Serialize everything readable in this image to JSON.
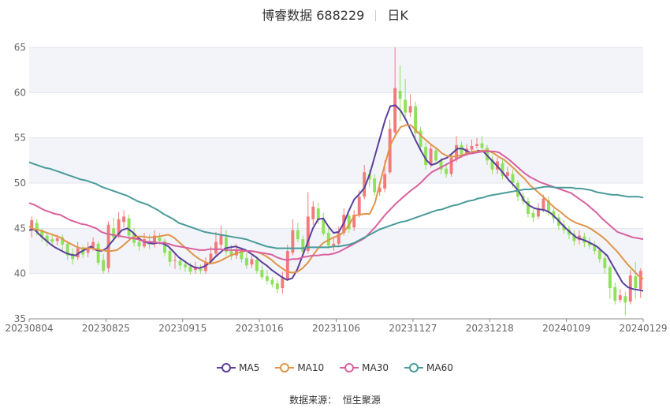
{
  "header": {
    "title": "博睿数据 688229",
    "period": "日K"
  },
  "legend": [
    {
      "label": "MA5",
      "color": "#5b3f9a"
    },
    {
      "label": "MA10",
      "color": "#e0954a"
    },
    {
      "label": "MA30",
      "color": "#d9619f"
    },
    {
      "label": "MA60",
      "color": "#4a9b9b"
    }
  ],
  "source": "数据来源：  恒生聚源",
  "colors": {
    "up": "#f37a7a",
    "down": "#8ee15a"
  },
  "chart_data": {
    "type": "candlestick",
    "ylim": [
      35,
      65
    ],
    "yticks": [
      35,
      40,
      45,
      50,
      55,
      60,
      65
    ],
    "xticks": [
      "20230804",
      "20230825",
      "20230915",
      "20231016",
      "20231106",
      "20231127",
      "20231218",
      "20240109",
      "20240129"
    ],
    "legend_position": "bottom",
    "grid": true,
    "series": [
      {
        "name": "MA5",
        "values": [
          44.8,
          44.9,
          44.3,
          43.8,
          43.3,
          42.9,
          42.6,
          42.3,
          42.1,
          42.0,
          42.4,
          42.7,
          43.0,
          42.6,
          42.5,
          42.8,
          43.5,
          44.2,
          44.8,
          45.0,
          44.6,
          44.0,
          43.6,
          43.4,
          43.3,
          43.4,
          43.3,
          43.0,
          42.4,
          41.8,
          41.4,
          41.0,
          40.7,
          40.6,
          40.8,
          41.2,
          41.8,
          42.3,
          42.8,
          42.9,
          43.0,
          42.8,
          42.6,
          42.2,
          41.8,
          41.3,
          40.9,
          40.4,
          40.0,
          39.6,
          39.3,
          39.5,
          40.5,
          42.0,
          43.5,
          45.0,
          46.0,
          46.1,
          45.2,
          44.5,
          44.6,
          45.6,
          47.0,
          48.2,
          48.8,
          49.5,
          51.0,
          53.0,
          55.0,
          57.0,
          58.5,
          58.6,
          58.0,
          57.0,
          55.8,
          54.6,
          53.5,
          52.5,
          52.0,
          52.2,
          52.6,
          52.8,
          53.3,
          53.8,
          53.8,
          53.5,
          53.3,
          53.6,
          53.5,
          52.9,
          52.3,
          51.7,
          51.0,
          50.3,
          49.7,
          49.0,
          48.0,
          47.5,
          47.2,
          47.1,
          47.0,
          46.7,
          46.2,
          45.6,
          45.0,
          44.5,
          44.0,
          43.8,
          43.6,
          43.3,
          43.0,
          42.5,
          42.0,
          41.0,
          40.0,
          39.0,
          38.5,
          38.3,
          38.2,
          38.1
        ]
      },
      {
        "name": "MA10",
        "values": [
          45.2,
          44.9,
          44.8,
          44.6,
          44.4,
          44.2,
          44.0,
          43.6,
          43.3,
          43.0,
          42.8,
          42.8,
          42.8,
          42.7,
          42.6,
          42.5,
          42.5,
          42.6,
          43.0,
          43.5,
          44.0,
          44.1,
          44.1,
          44.0,
          44.0,
          44.1,
          44.2,
          44.3,
          44.0,
          43.5,
          43.0,
          42.5,
          42.0,
          41.6,
          41.3,
          41.1,
          41.2,
          41.4,
          41.7,
          42.0,
          42.2,
          42.4,
          42.5,
          42.5,
          42.4,
          42.2,
          41.9,
          41.5,
          41.0,
          40.6,
          40.2,
          40.1,
          40.2,
          40.6,
          41.2,
          42.0,
          42.8,
          43.4,
          43.7,
          44.0,
          44.2,
          44.6,
          45.4,
          46.4,
          46.5,
          46.6,
          46.6,
          47.8,
          50.0,
          52.2,
          54.2,
          55.3,
          56.2,
          56.4,
          56.4,
          55.8,
          55.2,
          54.7,
          54.2,
          53.8,
          53.3,
          53.0,
          52.9,
          53.0,
          53.1,
          53.3,
          53.5,
          53.5,
          53.6,
          53.6,
          53.3,
          52.9,
          52.6,
          52.1,
          51.6,
          51.0,
          50.5,
          49.8,
          49.3,
          48.8,
          48.3,
          47.7,
          47.2,
          46.8,
          46.3,
          45.9,
          45.6,
          45.4,
          45.2,
          44.9,
          44.5,
          44.1,
          43.6,
          43.0,
          42.4,
          41.7,
          41.0,
          40.4,
          39.8,
          39.4
        ]
      },
      {
        "name": "MA30",
        "values": [
          47.8,
          47.6,
          47.3,
          47.0,
          46.8,
          46.6,
          46.5,
          46.2,
          45.9,
          45.7,
          45.5,
          45.4,
          45.2,
          45.0,
          44.6,
          44.4,
          44.3,
          44.2,
          44.1,
          44.0,
          43.9,
          43.8,
          43.6,
          43.5,
          43.5,
          43.4,
          43.4,
          43.3,
          43.1,
          43.0,
          42.9,
          42.8,
          42.7,
          42.6,
          42.6,
          42.7,
          42.7,
          42.7,
          42.6,
          42.6,
          42.6,
          42.6,
          42.5,
          42.5,
          42.4,
          42.3,
          42.2,
          42.1,
          41.8,
          41.6,
          41.5,
          41.6,
          41.6,
          41.8,
          41.9,
          42.0,
          42.0,
          42.1,
          42.1,
          42.2,
          42.4,
          42.7,
          43.0,
          43.3,
          43.6,
          43.9,
          44.5,
          45.1,
          45.8,
          46.5,
          47.1,
          47.7,
          48.2,
          48.7,
          49.2,
          49.6,
          50.1,
          50.7,
          51.2,
          51.5,
          51.8,
          52.1,
          52.4,
          52.7,
          53.0,
          53.2,
          53.3,
          53.4,
          53.5,
          53.5,
          53.5,
          53.4,
          53.0,
          52.6,
          52.1,
          51.6,
          51.1,
          50.7,
          50.4,
          50.1,
          49.9,
          49.7,
          49.5,
          49.3,
          49.1,
          48.9,
          48.5,
          48.1,
          47.7,
          47.2,
          46.7,
          46.1,
          45.6,
          45.1,
          44.6,
          44.4,
          44.2,
          44.0,
          43.9,
          43.8
        ]
      },
      {
        "name": "MA60",
        "values": [
          52.3,
          52.1,
          51.9,
          51.7,
          51.6,
          51.4,
          51.2,
          51.0,
          50.8,
          50.6,
          50.4,
          50.3,
          50.1,
          49.9,
          49.6,
          49.4,
          49.2,
          49.0,
          48.8,
          48.6,
          48.3,
          48.0,
          47.8,
          47.6,
          47.3,
          47.0,
          46.6,
          46.3,
          46.0,
          45.6,
          45.4,
          45.2,
          45.0,
          44.8,
          44.6,
          44.5,
          44.4,
          44.3,
          44.2,
          44.1,
          44.0,
          43.9,
          43.8,
          43.6,
          43.4,
          43.2,
          43.0,
          42.9,
          42.8,
          42.8,
          42.8,
          42.8,
          42.8,
          42.8,
          42.9,
          42.9,
          42.9,
          42.9,
          42.9,
          43.0,
          43.0,
          43.1,
          43.2,
          43.4,
          43.7,
          44.0,
          44.3,
          44.6,
          44.9,
          45.1,
          45.3,
          45.5,
          45.7,
          45.8,
          46.0,
          46.2,
          46.4,
          46.6,
          46.8,
          47.0,
          47.1,
          47.3,
          47.5,
          47.6,
          47.8,
          48.0,
          48.1,
          48.3,
          48.4,
          48.6,
          48.7,
          48.8,
          48.9,
          49.0,
          49.1,
          49.2,
          49.3,
          49.3,
          49.4,
          49.5,
          49.6,
          49.6,
          49.5,
          49.5,
          49.5,
          49.5,
          49.4,
          49.4,
          49.3,
          49.2,
          49.0,
          48.9,
          48.8,
          48.7,
          48.7,
          48.6,
          48.5,
          48.5,
          48.5,
          48.4
        ]
      }
    ],
    "candles": [
      [
        44.8,
        45.9,
        44.0,
        46.3
      ],
      [
        45.6,
        44.6,
        44.2,
        46.0
      ],
      [
        44.8,
        44.0,
        43.5,
        45.0
      ],
      [
        44.2,
        43.5,
        43.0,
        44.6
      ],
      [
        43.8,
        43.5,
        43.0,
        44.2
      ],
      [
        43.6,
        43.9,
        43.1,
        44.3
      ],
      [
        44.0,
        43.2,
        42.6,
        44.3
      ],
      [
        43.3,
        42.0,
        41.5,
        43.6
      ],
      [
        42.2,
        41.6,
        41.0,
        42.8
      ],
      [
        41.8,
        42.8,
        41.5,
        43.5
      ],
      [
        42.7,
        42.1,
        41.7,
        43.1
      ],
      [
        42.3,
        42.8,
        41.8,
        43.5
      ],
      [
        42.9,
        43.5,
        42.5,
        44.0
      ],
      [
        43.3,
        41.2,
        40.9,
        43.6
      ],
      [
        41.5,
        40.3,
        40.0,
        42.2
      ],
      [
        40.6,
        45.4,
        40.1,
        45.8
      ],
      [
        45.0,
        44.0,
        43.5,
        46.2
      ],
      [
        44.2,
        46.0,
        43.9,
        46.8
      ],
      [
        45.7,
        46.3,
        45.1,
        47.0
      ],
      [
        46.1,
        44.2,
        43.8,
        46.5
      ],
      [
        44.5,
        43.4,
        43.0,
        45.0
      ],
      [
        43.5,
        43.0,
        42.5,
        44.0
      ],
      [
        43.0,
        43.8,
        42.8,
        44.5
      ],
      [
        43.6,
        43.2,
        42.7,
        44.3
      ],
      [
        43.3,
        44.2,
        42.9,
        44.8
      ],
      [
        44.0,
        43.6,
        43.2,
        44.5
      ],
      [
        43.6,
        42.3,
        41.9,
        43.9
      ],
      [
        42.5,
        41.3,
        40.8,
        42.8
      ],
      [
        41.5,
        41.5,
        40.5,
        42.2
      ],
      [
        41.4,
        40.9,
        40.4,
        41.8
      ],
      [
        41.0,
        40.7,
        40.2,
        41.4
      ],
      [
        40.8,
        40.2,
        39.9,
        41.2
      ],
      [
        40.4,
        40.6,
        40.0,
        41.3
      ],
      [
        40.5,
        40.3,
        40.0,
        41.0
      ],
      [
        40.3,
        41.2,
        40.0,
        41.8
      ],
      [
        41.3,
        42.2,
        41.0,
        43.0
      ],
      [
        42.2,
        43.5,
        41.9,
        44.6
      ],
      [
        43.2,
        44.2,
        42.8,
        45.3
      ],
      [
        44.0,
        42.4,
        42.0,
        44.8
      ],
      [
        42.5,
        41.9,
        41.5,
        43.2
      ],
      [
        42.0,
        42.7,
        41.6,
        43.3
      ],
      [
        42.5,
        41.6,
        41.2,
        42.8
      ],
      [
        41.7,
        40.9,
        40.5,
        42.3
      ],
      [
        41.0,
        41.6,
        40.6,
        42.0
      ],
      [
        41.5,
        40.3,
        40.0,
        41.9
      ],
      [
        40.4,
        39.6,
        39.3,
        40.9
      ],
      [
        39.7,
        39.2,
        38.8,
        40.4
      ],
      [
        39.3,
        38.8,
        38.5,
        39.6
      ],
      [
        38.9,
        38.3,
        37.8,
        39.3
      ],
      [
        38.4,
        39.5,
        37.8,
        40.2
      ],
      [
        39.4,
        42.5,
        39.2,
        43.2
      ],
      [
        42.3,
        44.8,
        42.0,
        46.0
      ],
      [
        44.8,
        43.8,
        43.5,
        45.6
      ],
      [
        43.8,
        42.4,
        41.9,
        44.2
      ],
      [
        42.5,
        46.3,
        42.2,
        49.0
      ],
      [
        46.0,
        47.4,
        45.4,
        48.0
      ],
      [
        47.2,
        45.9,
        45.5,
        47.8
      ],
      [
        46.0,
        44.4,
        44.2,
        46.7
      ],
      [
        44.5,
        43.1,
        42.8,
        45.2
      ],
      [
        43.0,
        43.3,
        42.5,
        44.0
      ],
      [
        43.3,
        44.5,
        43.0,
        45.2
      ],
      [
        44.5,
        46.5,
        44.2,
        47.2
      ],
      [
        46.4,
        44.9,
        44.5,
        46.6
      ],
      [
        45.1,
        46.5,
        44.7,
        47.0
      ],
      [
        46.4,
        48.5,
        46.2,
        49.2
      ],
      [
        48.5,
        51.2,
        48.2,
        52.0
      ],
      [
        51.0,
        50.4,
        49.6,
        51.5
      ],
      [
        50.5,
        49.0,
        48.6,
        51.0
      ],
      [
        49.0,
        49.5,
        48.6,
        50.2
      ],
      [
        49.4,
        51.0,
        49.0,
        52.5
      ],
      [
        51.2,
        56.0,
        51.0,
        57.0
      ],
      [
        55.6,
        60.5,
        55.0,
        65.0
      ],
      [
        60.2,
        59.3,
        56.8,
        63.0
      ],
      [
        59.2,
        57.8,
        57.0,
        61.5
      ],
      [
        57.8,
        58.5,
        57.3,
        59.8
      ],
      [
        58.5,
        55.5,
        55.0,
        59.0
      ],
      [
        55.8,
        54.0,
        53.5,
        56.2
      ],
      [
        54.0,
        52.0,
        51.5,
        54.5
      ],
      [
        52.0,
        53.8,
        51.7,
        54.3
      ],
      [
        53.6,
        52.5,
        52.0,
        54.0
      ],
      [
        52.5,
        51.5,
        51.0,
        52.8
      ],
      [
        51.6,
        51.0,
        50.6,
        52.2
      ],
      [
        51.0,
        52.8,
        50.7,
        53.2
      ],
      [
        52.6,
        54.2,
        52.3,
        55.2
      ],
      [
        54.2,
        53.2,
        52.8,
        54.6
      ],
      [
        53.2,
        53.8,
        53.0,
        54.3
      ],
      [
        53.7,
        54.1,
        53.4,
        54.8
      ],
      [
        54.1,
        54.3,
        53.8,
        55.0
      ],
      [
        54.4,
        53.9,
        53.4,
        55.2
      ],
      [
        53.9,
        52.5,
        52.0,
        54.2
      ],
      [
        52.6,
        51.5,
        51.0,
        53.0
      ],
      [
        51.5,
        52.4,
        51.0,
        52.8
      ],
      [
        52.2,
        50.8,
        50.4,
        52.6
      ],
      [
        50.8,
        51.2,
        50.4,
        51.8
      ],
      [
        51.0,
        50.0,
        49.5,
        51.5
      ],
      [
        50.0,
        48.5,
        48.0,
        50.3
      ],
      [
        48.6,
        48.0,
        47.6,
        49.0
      ],
      [
        48.0,
        46.6,
        46.2,
        48.4
      ],
      [
        46.7,
        46.2,
        45.7,
        47.1
      ],
      [
        46.3,
        47.2,
        46.0,
        47.8
      ],
      [
        47.1,
        48.3,
        46.8,
        48.7
      ],
      [
        48.1,
        46.8,
        46.4,
        48.5
      ],
      [
        46.9,
        46.1,
        45.6,
        47.2
      ],
      [
        46.2,
        45.3,
        44.8,
        46.6
      ],
      [
        45.4,
        44.8,
        44.4,
        45.9
      ],
      [
        44.9,
        44.3,
        43.8,
        45.3
      ],
      [
        44.4,
        43.6,
        43.1,
        44.8
      ],
      [
        43.7,
        44.2,
        43.2,
        44.8
      ],
      [
        44.1,
        43.4,
        42.9,
        44.5
      ],
      [
        43.5,
        43.1,
        42.7,
        44.0
      ],
      [
        43.2,
        42.5,
        42.1,
        43.6
      ],
      [
        42.6,
        41.6,
        41.2,
        43.0
      ],
      [
        41.7,
        40.6,
        40.0,
        42.2
      ],
      [
        40.7,
        38.4,
        37.2,
        40.9
      ],
      [
        38.5,
        37.0,
        36.6,
        39.0
      ],
      [
        37.1,
        37.6,
        36.8,
        38.3
      ],
      [
        37.5,
        36.8,
        35.4,
        38.0
      ],
      [
        36.9,
        39.8,
        36.6,
        40.4
      ],
      [
        39.7,
        38.4,
        37.2,
        41.3
      ],
      [
        38.3,
        40.3,
        37.3,
        40.6
      ]
    ]
  }
}
